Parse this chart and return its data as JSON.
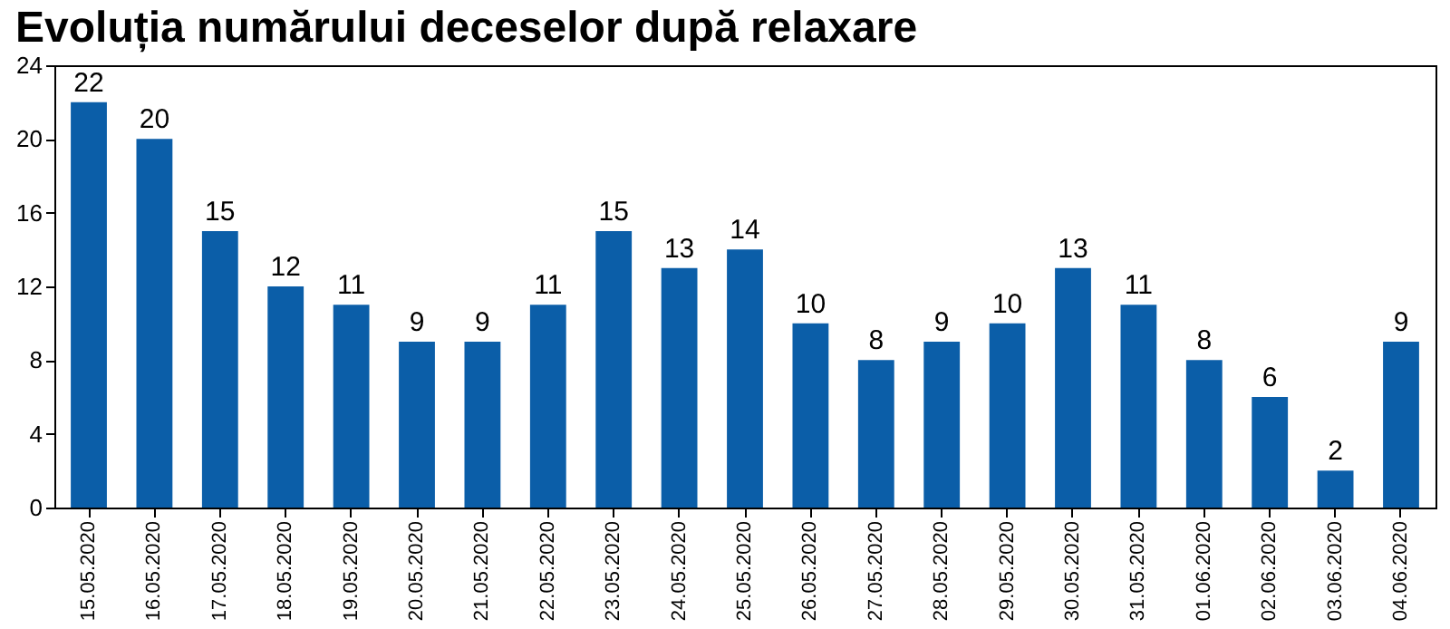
{
  "chart_data": {
    "type": "bar",
    "title": "Evoluția numărului deceselor după relaxare",
    "categories": [
      "15.05.2020",
      "16.05.2020",
      "17.05.2020",
      "18.05.2020",
      "19.05.2020",
      "20.05.2020",
      "21.05.2020",
      "22.05.2020",
      "23.05.2020",
      "24.05.2020",
      "25.05.2020",
      "26.05.2020",
      "27.05.2020",
      "28.05.2020",
      "29.05.2020",
      "30.05.2020",
      "31.05.2020",
      "01.06.2020",
      "02.06.2020",
      "03.06.2020",
      "04.06.2020"
    ],
    "values": [
      22,
      20,
      15,
      12,
      11,
      9,
      9,
      11,
      15,
      13,
      14,
      10,
      8,
      9,
      10,
      13,
      11,
      8,
      6,
      2,
      9
    ],
    "color": "#0b5ea8",
    "ylim": [
      0,
      24
    ],
    "yticks": [
      0,
      4,
      8,
      12,
      16,
      20,
      24
    ],
    "grid": false,
    "data_labels": true
  }
}
